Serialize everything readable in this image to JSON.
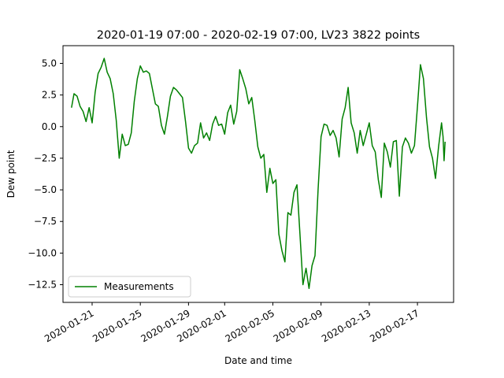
{
  "chart_data": {
    "type": "line",
    "title": "2020-01-19 07:00 - 2020-02-19 07:00, LV23 3822 points",
    "xlabel": "Date and time",
    "ylabel": "Dew point",
    "xlim": [
      "2020-01-18T14:00",
      "2020-02-20T00:00"
    ],
    "ylim": [
      -13.9,
      6.4
    ],
    "x_ticks": [
      "2020-01-21",
      "2020-01-25",
      "2020-01-29",
      "2020-02-01",
      "2020-02-05",
      "2020-02-09",
      "2020-02-13",
      "2020-02-17"
    ],
    "y_ticks": [
      5.0,
      2.5,
      0.0,
      -2.5,
      -5.0,
      -7.5,
      -10.0,
      -12.5
    ],
    "y_tick_labels": [
      "5.0",
      "2.5",
      "0.0",
      "−2.5",
      "−5.0",
      "−7.5",
      "−10.0",
      "−12.5"
    ],
    "grid": false,
    "legend_position": "lower-left",
    "series": [
      {
        "name": "Measurements",
        "color": "#008000",
        "points": [
          [
            "2020-01-19T07:00",
            1.5
          ],
          [
            "2020-01-19T12:00",
            2.6
          ],
          [
            "2020-01-19T18:00",
            2.4
          ],
          [
            "2020-01-20T00:00",
            1.6
          ],
          [
            "2020-01-20T06:00",
            1.2
          ],
          [
            "2020-01-20T12:00",
            0.4
          ],
          [
            "2020-01-20T18:00",
            1.5
          ],
          [
            "2020-01-21T00:00",
            0.3
          ],
          [
            "2020-01-21T06:00",
            2.7
          ],
          [
            "2020-01-21T12:00",
            4.2
          ],
          [
            "2020-01-21T18:00",
            4.7
          ],
          [
            "2020-01-22T00:00",
            5.4
          ],
          [
            "2020-01-22T06:00",
            4.3
          ],
          [
            "2020-01-22T12:00",
            3.8
          ],
          [
            "2020-01-22T18:00",
            2.6
          ],
          [
            "2020-01-23T00:00",
            0.5
          ],
          [
            "2020-01-23T06:00",
            -2.5
          ],
          [
            "2020-01-23T12:00",
            -0.6
          ],
          [
            "2020-01-23T18:00",
            -1.5
          ],
          [
            "2020-01-24T00:00",
            -1.4
          ],
          [
            "2020-01-24T06:00",
            -0.5
          ],
          [
            "2020-01-24T12:00",
            2.0
          ],
          [
            "2020-01-24T18:00",
            3.8
          ],
          [
            "2020-01-25T00:00",
            4.8
          ],
          [
            "2020-01-25T06:00",
            4.3
          ],
          [
            "2020-01-25T12:00",
            4.4
          ],
          [
            "2020-01-25T18:00",
            4.2
          ],
          [
            "2020-01-26T00:00",
            3.0
          ],
          [
            "2020-01-26T06:00",
            1.8
          ],
          [
            "2020-01-26T12:00",
            1.6
          ],
          [
            "2020-01-26T18:00",
            0.1
          ],
          [
            "2020-01-27T00:00",
            -0.6
          ],
          [
            "2020-01-27T06:00",
            0.8
          ],
          [
            "2020-01-27T12:00",
            2.4
          ],
          [
            "2020-01-27T18:00",
            3.1
          ],
          [
            "2020-01-28T00:00",
            2.9
          ],
          [
            "2020-01-28T06:00",
            2.6
          ],
          [
            "2020-01-28T12:00",
            2.3
          ],
          [
            "2020-01-28T18:00",
            0.4
          ],
          [
            "2020-01-29T00:00",
            -1.7
          ],
          [
            "2020-01-29T06:00",
            -2.1
          ],
          [
            "2020-01-29T12:00",
            -1.5
          ],
          [
            "2020-01-29T18:00",
            -1.3
          ],
          [
            "2020-01-30T00:00",
            0.3
          ],
          [
            "2020-01-30T06:00",
            -0.9
          ],
          [
            "2020-01-30T12:00",
            -0.5
          ],
          [
            "2020-01-30T18:00",
            -1.1
          ],
          [
            "2020-01-31T00:00",
            0.2
          ],
          [
            "2020-01-31T06:00",
            0.8
          ],
          [
            "2020-01-31T12:00",
            0.1
          ],
          [
            "2020-01-31T18:00",
            0.2
          ],
          [
            "2020-02-01T00:00",
            -0.6
          ],
          [
            "2020-02-01T06:00",
            1.1
          ],
          [
            "2020-02-01T12:00",
            1.7
          ],
          [
            "2020-02-01T18:00",
            0.2
          ],
          [
            "2020-02-02T00:00",
            1.2
          ],
          [
            "2020-02-02T06:00",
            4.5
          ],
          [
            "2020-02-02T12:00",
            3.8
          ],
          [
            "2020-02-02T18:00",
            3.0
          ],
          [
            "2020-02-03T00:00",
            1.8
          ],
          [
            "2020-02-03T06:00",
            2.3
          ],
          [
            "2020-02-03T12:00",
            0.5
          ],
          [
            "2020-02-03T18:00",
            -1.6
          ],
          [
            "2020-02-04T00:00",
            -2.5
          ],
          [
            "2020-02-04T06:00",
            -2.2
          ],
          [
            "2020-02-04T12:00",
            -5.2
          ],
          [
            "2020-02-04T18:00",
            -3.3
          ],
          [
            "2020-02-05T00:00",
            -4.5
          ],
          [
            "2020-02-05T06:00",
            -4.2
          ],
          [
            "2020-02-05T12:00",
            -8.5
          ],
          [
            "2020-02-05T18:00",
            -9.8
          ],
          [
            "2020-02-06T00:00",
            -10.7
          ],
          [
            "2020-02-06T06:00",
            -6.8
          ],
          [
            "2020-02-06T12:00",
            -7.0
          ],
          [
            "2020-02-06T18:00",
            -5.2
          ],
          [
            "2020-02-07T00:00",
            -4.6
          ],
          [
            "2020-02-07T06:00",
            -8.5
          ],
          [
            "2020-02-07T12:00",
            -12.5
          ],
          [
            "2020-02-07T18:00",
            -11.2
          ],
          [
            "2020-02-08T00:00",
            -12.8
          ],
          [
            "2020-02-08T06:00",
            -11.0
          ],
          [
            "2020-02-08T12:00",
            -10.2
          ],
          [
            "2020-02-08T18:00",
            -5.0
          ],
          [
            "2020-02-09T00:00",
            -0.8
          ],
          [
            "2020-02-09T06:00",
            0.2
          ],
          [
            "2020-02-09T12:00",
            0.1
          ],
          [
            "2020-02-09T18:00",
            -0.7
          ],
          [
            "2020-02-10T00:00",
            -0.3
          ],
          [
            "2020-02-10T06:00",
            -0.9
          ],
          [
            "2020-02-10T12:00",
            -2.4
          ],
          [
            "2020-02-10T18:00",
            0.6
          ],
          [
            "2020-02-11T00:00",
            1.5
          ],
          [
            "2020-02-11T06:00",
            3.1
          ],
          [
            "2020-02-11T12:00",
            0.3
          ],
          [
            "2020-02-11T18:00",
            -0.5
          ],
          [
            "2020-02-12T00:00",
            -2.1
          ],
          [
            "2020-02-12T06:00",
            -0.3
          ],
          [
            "2020-02-12T12:00",
            -1.5
          ],
          [
            "2020-02-12T18:00",
            -0.6
          ],
          [
            "2020-02-13T00:00",
            0.3
          ],
          [
            "2020-02-13T06:00",
            -1.5
          ],
          [
            "2020-02-13T12:00",
            -2.0
          ],
          [
            "2020-02-13T18:00",
            -4.2
          ],
          [
            "2020-02-14T00:00",
            -5.6
          ],
          [
            "2020-02-14T06:00",
            -1.3
          ],
          [
            "2020-02-14T12:00",
            -2.0
          ],
          [
            "2020-02-14T18:00",
            -3.2
          ],
          [
            "2020-02-15T00:00",
            -1.2
          ],
          [
            "2020-02-15T06:00",
            -1.1
          ],
          [
            "2020-02-15T12:00",
            -5.5
          ],
          [
            "2020-02-15T18:00",
            -1.6
          ],
          [
            "2020-02-16T00:00",
            -0.9
          ],
          [
            "2020-02-16T06:00",
            -1.3
          ],
          [
            "2020-02-16T12:00",
            -2.1
          ],
          [
            "2020-02-16T18:00",
            -1.5
          ],
          [
            "2020-02-17T00:00",
            1.6
          ],
          [
            "2020-02-17T06:00",
            4.9
          ],
          [
            "2020-02-17T12:00",
            3.8
          ],
          [
            "2020-02-17T18:00",
            0.7
          ],
          [
            "2020-02-18T00:00",
            -1.6
          ],
          [
            "2020-02-18T06:00",
            -2.5
          ],
          [
            "2020-02-18T12:00",
            -4.1
          ],
          [
            "2020-02-18T18:00",
            -1.6
          ],
          [
            "2020-02-19T00:00",
            0.3
          ],
          [
            "2020-02-19T03:00",
            -0.8
          ],
          [
            "2020-02-19T05:00",
            -2.7
          ],
          [
            "2020-02-19T07:00",
            -1.2
          ]
        ]
      }
    ]
  }
}
